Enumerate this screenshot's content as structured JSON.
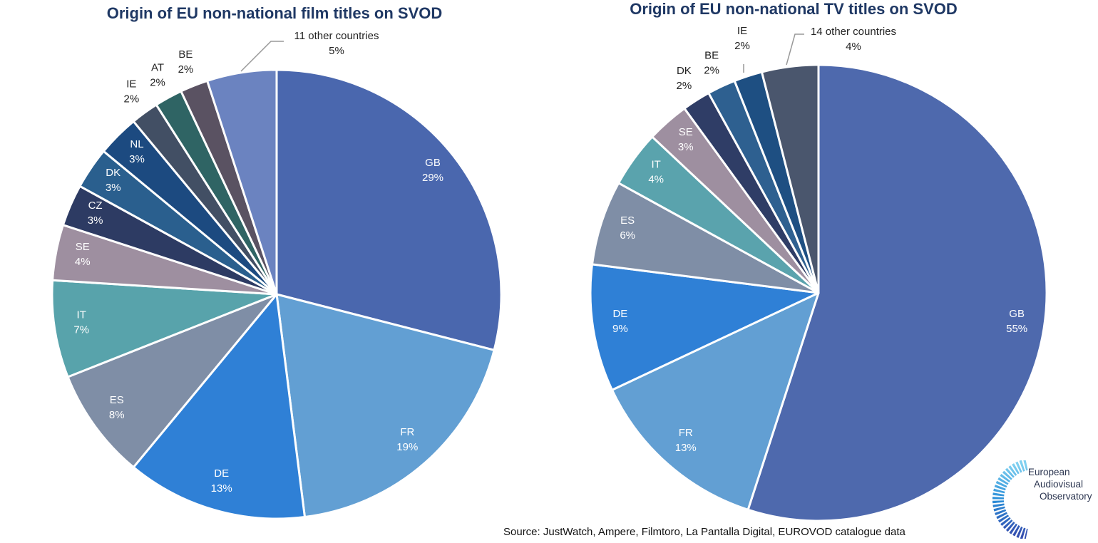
{
  "chart_data": [
    {
      "type": "pie",
      "title": "Origin of EU non-national film titles on SVOD",
      "unit": "%",
      "slices": [
        {
          "label": "GB",
          "value": 29,
          "display": "29%",
          "color": "#4a67ae"
        },
        {
          "label": "FR",
          "value": 19,
          "display": "19%",
          "color": "#629fd3"
        },
        {
          "label": "DE",
          "value": 13,
          "display": "13%",
          "color": "#2f80d6"
        },
        {
          "label": "ES",
          "value": 8,
          "display": "8%",
          "color": "#7f8ea6"
        },
        {
          "label": "IT",
          "value": 7,
          "display": "7%",
          "color": "#58a3ab"
        },
        {
          "label": "SE",
          "value": 4,
          "display": "4%",
          "color": "#9e8fa0"
        },
        {
          "label": "CZ",
          "value": 3,
          "display": "3%",
          "color": "#2d3b63"
        },
        {
          "label": "DK",
          "value": 3,
          "display": "3%",
          "color": "#2a5f8e"
        },
        {
          "label": "NL",
          "value": 3,
          "display": "3%",
          "color": "#1c4a80"
        },
        {
          "label": "IE",
          "value": 2,
          "display": "2%",
          "color": "#424f64",
          "outside": true
        },
        {
          "label": "AT",
          "value": 2,
          "display": "2%",
          "color": "#2f6464",
          "outside": true
        },
        {
          "label": "BE",
          "value": 2,
          "display": "2%",
          "color": "#5a5262",
          "outside": true
        },
        {
          "label": "11 other countries",
          "value": 5,
          "display": "5%",
          "color": "#6b83c0",
          "outside": true,
          "leader": true
        }
      ]
    },
    {
      "type": "pie",
      "title": "Origin of EU non-national TV titles on SVOD",
      "unit": "%",
      "slices": [
        {
          "label": "GB",
          "value": 55,
          "display": "55%",
          "color": "#4e69ad"
        },
        {
          "label": "FR",
          "value": 13,
          "display": "13%",
          "color": "#629fd3"
        },
        {
          "label": "DE",
          "value": 9,
          "display": "9%",
          "color": "#2f80d6"
        },
        {
          "label": "ES",
          "value": 6,
          "display": "6%",
          "color": "#7f8ea6"
        },
        {
          "label": "IT",
          "value": 4,
          "display": "4%",
          "color": "#5aa3ad"
        },
        {
          "label": "SE",
          "value": 3,
          "display": "3%",
          "color": "#9e8fa0"
        },
        {
          "label": "DK",
          "value": 2,
          "display": "2%",
          "color": "#2f3d66",
          "outside": true
        },
        {
          "label": "BE",
          "value": 2,
          "display": "2%",
          "color": "#2e6090",
          "outside": true
        },
        {
          "label": "IE",
          "value": 2,
          "display": "2%",
          "color": "#1e4f82",
          "outside": true,
          "leader": true
        },
        {
          "label": "14 other countries",
          "value": 4,
          "display": "4%",
          "color": "#4a566d",
          "outside": true,
          "leader": true
        }
      ]
    }
  ],
  "source": "Source: JustWatch, Ampere, Filmtoro, La Pantalla Digital, EUROVOD catalogue data",
  "logo": {
    "lines": [
      "European",
      "Audiovisual",
      "Observatory"
    ]
  }
}
